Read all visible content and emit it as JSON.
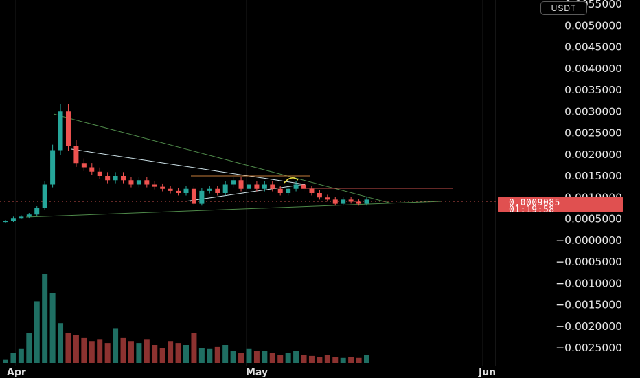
{
  "chart_data": {
    "type": "candlestick",
    "quote_unit": "USDT",
    "ylim": [
      -0.0027,
      0.0056
    ],
    "y_ticks": [
      "0.0055000",
      "0.0050000",
      "0.0045000",
      "0.0040000",
      "0.0035000",
      "0.0030000",
      "0.0025000",
      "0.0020000",
      "0.0015000",
      "0.0010000",
      "0.0005000",
      "−0.0000000",
      "−0.0005000",
      "−0.0010000",
      "−0.0015000",
      "−0.0020000",
      "−0.0025000"
    ],
    "x_ticks": [
      "Apr",
      "May",
      "Jun"
    ],
    "current_price": "0.0009085",
    "countdown": "01:19:58",
    "price_series": {
      "name": "",
      "values": [
        0.00045,
        0.00052,
        0.00055,
        0.0006,
        0.00075,
        0.0013,
        0.0021,
        0.003,
        0.0022,
        0.0018,
        0.0017,
        0.0016,
        0.0015,
        0.0014,
        0.0015,
        0.0014,
        0.0013,
        0.0014,
        0.0013,
        0.00125,
        0.0012,
        0.00115,
        0.0011,
        0.0012,
        0.00085,
        0.00115,
        0.0012,
        0.0011,
        0.0013,
        0.0014,
        0.0012,
        0.0013,
        0.0012,
        0.0013,
        0.0012,
        0.0011,
        0.0012,
        0.0013,
        0.0012,
        0.0011,
        0.001,
        0.00095,
        0.00085,
        0.00095,
        0.0009,
        0.00085,
        0.00095
      ]
    },
    "volume_series": {
      "name": "",
      "values": [
        3,
        10,
        14,
        30,
        62,
        90,
        70,
        40,
        30,
        28,
        25,
        22,
        24,
        20,
        35,
        25,
        22,
        20,
        24,
        18,
        15,
        22,
        20,
        18,
        30,
        15,
        14,
        16,
        18,
        12,
        10,
        14,
        12,
        12,
        10,
        8,
        10,
        12,
        8,
        7,
        6,
        8,
        6,
        5,
        6,
        5,
        8
      ]
    },
    "up_color": "#26a69a",
    "down_color": "#ef5350",
    "badge_color": "#e05050"
  }
}
